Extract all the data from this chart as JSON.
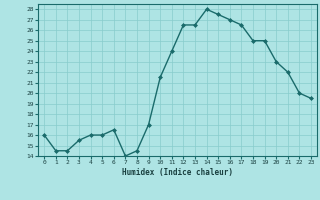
{
  "x": [
    0,
    1,
    2,
    3,
    4,
    5,
    6,
    7,
    8,
    9,
    10,
    11,
    12,
    13,
    14,
    15,
    16,
    17,
    18,
    19,
    20,
    21,
    22,
    23
  ],
  "y": [
    16,
    14.5,
    14.5,
    15.5,
    16,
    16,
    16.5,
    14,
    14.5,
    17,
    21.5,
    24,
    26.5,
    26.5,
    28,
    27.5,
    27,
    26.5,
    25,
    25,
    23,
    22,
    20,
    19.5
  ],
  "title": "",
  "xlabel": "Humidex (Indice chaleur)",
  "ylabel": "",
  "xlim": [
    -0.5,
    23.5
  ],
  "ylim": [
    14,
    28.5
  ],
  "yticks": [
    14,
    15,
    16,
    17,
    18,
    19,
    20,
    21,
    22,
    23,
    24,
    25,
    26,
    27,
    28
  ],
  "xticks": [
    0,
    1,
    2,
    3,
    4,
    5,
    6,
    7,
    8,
    9,
    10,
    11,
    12,
    13,
    14,
    15,
    16,
    17,
    18,
    19,
    20,
    21,
    22,
    23
  ],
  "line_color": "#1a6b6b",
  "marker_color": "#1a6b6b",
  "bg_color": "#aee4e4",
  "grid_color": "#88cccc",
  "axis_color": "#1a6b6b",
  "tick_label_color": "#1a4040",
  "xlabel_color": "#1a4040"
}
